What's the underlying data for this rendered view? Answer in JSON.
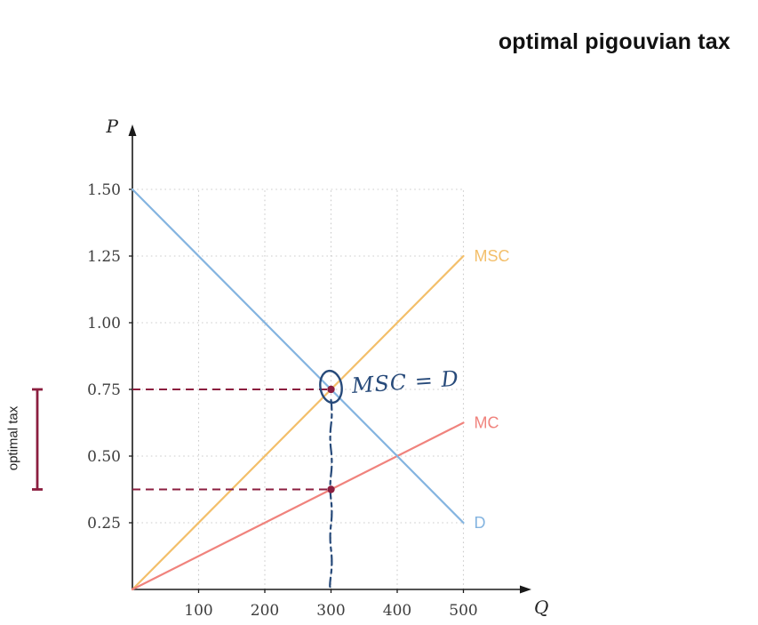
{
  "title": "optimal pigouvian tax",
  "bracket_label": "optimal tax",
  "chart_data": {
    "type": "line",
    "title": "optimal pigouvian tax",
    "xlabel": "Q",
    "ylabel": "P",
    "xlim": [
      0,
      560
    ],
    "ylim": [
      0,
      1.75
    ],
    "x_ticks": [
      100,
      200,
      300,
      400,
      500
    ],
    "y_ticks": [
      0.25,
      0.5,
      0.75,
      1.0,
      1.25,
      1.5
    ],
    "grid": true,
    "series": [
      {
        "name": "MSC",
        "color": "#f3bf6a",
        "points": [
          [
            0,
            0
          ],
          [
            500,
            1.25
          ]
        ]
      },
      {
        "name": "MC",
        "color": "#f0837d",
        "points": [
          [
            0,
            0
          ],
          [
            500,
            0.625
          ]
        ]
      },
      {
        "name": "D",
        "color": "#84b4e0",
        "points": [
          [
            0,
            1.5
          ],
          [
            500,
            0.25
          ]
        ]
      }
    ],
    "markers": [
      {
        "x": 300,
        "y": 0.75,
        "color": "#8b1e3f"
      },
      {
        "x": 300,
        "y": 0.375,
        "color": "#8b1e3f"
      }
    ],
    "dashed_guides": [
      {
        "from": [
          0,
          0.75
        ],
        "to": [
          300,
          0.75
        ],
        "color": "#8b1e3f"
      },
      {
        "from": [
          0,
          0.375
        ],
        "to": [
          300,
          0.375
        ],
        "color": "#8b1e3f"
      }
    ],
    "handwritten": {
      "label": "MSC = D",
      "ink": "#274a7a",
      "drop_line_x": 300,
      "drop_from": 0.75,
      "drop_to": 0,
      "circle_at": [
        300,
        0.76
      ]
    },
    "bracket": {
      "label": "optimal tax",
      "from": 0.375,
      "to": 0.75,
      "color": "#8b1e3f"
    }
  }
}
